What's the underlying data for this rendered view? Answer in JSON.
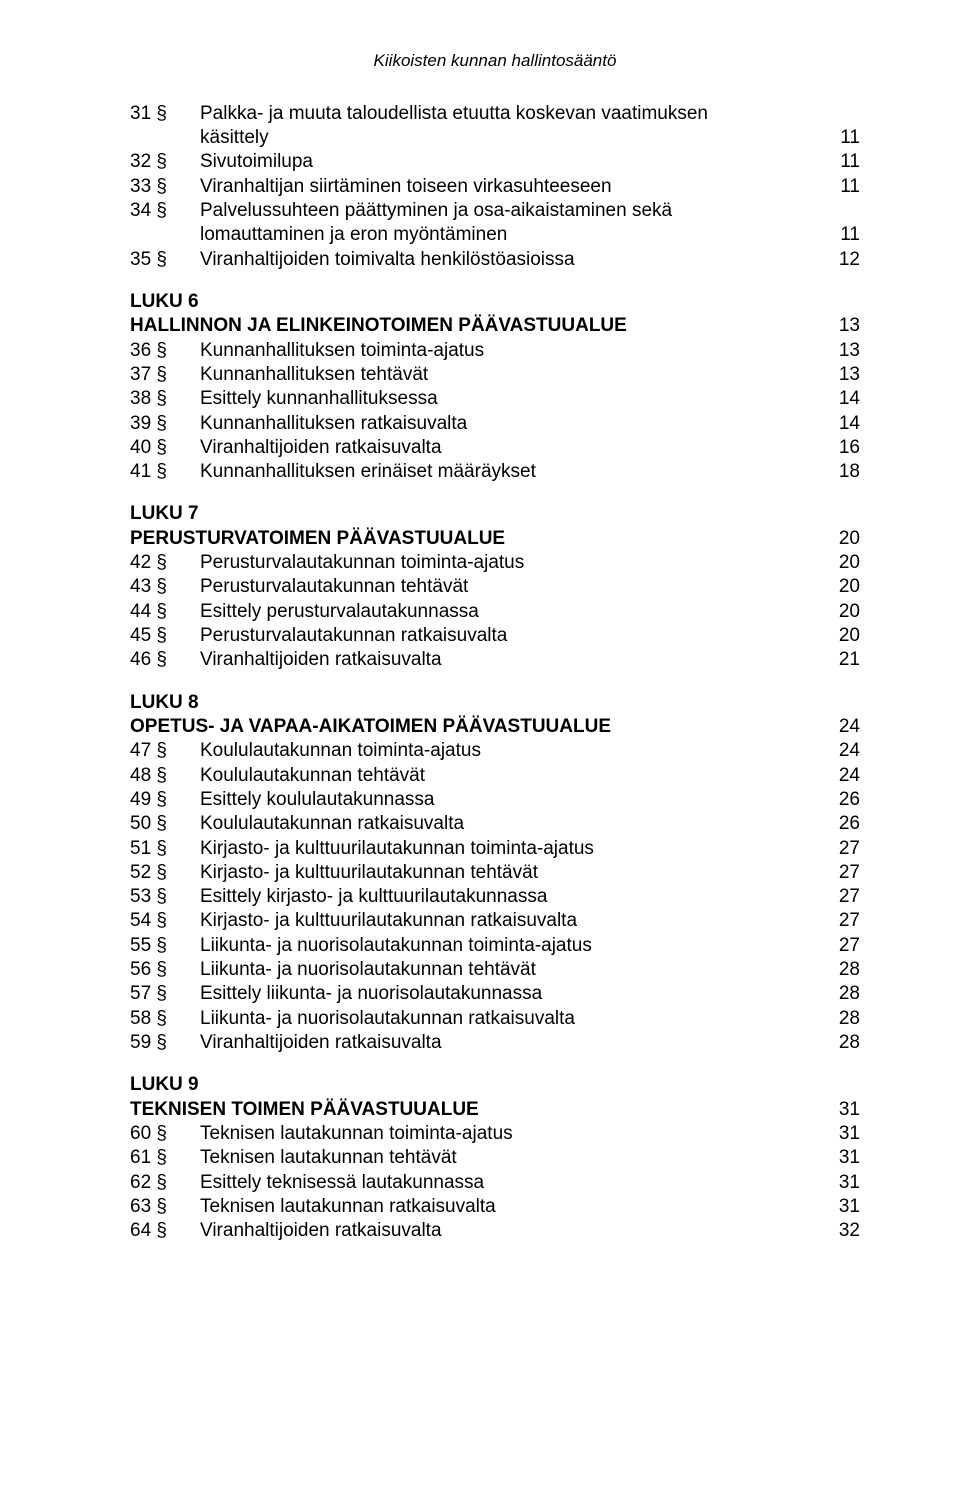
{
  "header": "Kiikoisten kunnan hallintosääntö",
  "top_entries": [
    {
      "num": "31 §",
      "text_lines": [
        "Palkka- ja muuta taloudellista etuutta koskevan vaatimuksen",
        "käsittely"
      ],
      "page": "11"
    },
    {
      "num": "32 §",
      "text_lines": [
        "Sivutoimilupa"
      ],
      "page": "11"
    },
    {
      "num": "33 §",
      "text_lines": [
        "Viranhaltijan siirtäminen toiseen virkasuhteeseen"
      ],
      "page": "11"
    },
    {
      "num": "34 §",
      "text_lines": [
        "Palvelussuhteen päättyminen ja osa-aikaistaminen sekä",
        "lomauttaminen ja eron myöntäminen"
      ],
      "page": "11"
    },
    {
      "num": "35 §",
      "text_lines": [
        "Viranhaltijoiden toimivalta henkilöstöasioissa"
      ],
      "page": "12"
    }
  ],
  "sections": [
    {
      "luku": "LUKU 6",
      "title": "HALLINNON JA ELINKEINOTOIMEN PÄÄVASTUUALUE",
      "title_page": "13",
      "entries": [
        {
          "num": "36 §",
          "text": "Kunnanhallituksen toiminta-ajatus",
          "page": "13"
        },
        {
          "num": "37 §",
          "text": "Kunnanhallituksen tehtävät",
          "page": "13"
        },
        {
          "num": "38 §",
          "text": "Esittely kunnanhallituksessa",
          "page": "14"
        },
        {
          "num": "39 §",
          "text": "Kunnanhallituksen ratkaisuvalta",
          "page": "14"
        },
        {
          "num": "40 §",
          "text": "Viranhaltijoiden ratkaisuvalta",
          "page": "16"
        },
        {
          "num": "41 §",
          "text": "Kunnanhallituksen erinäiset määräykset",
          "page": "18"
        }
      ]
    },
    {
      "luku": "LUKU 7",
      "title": "PERUSTURVATOIMEN PÄÄVASTUUALUE",
      "title_page": "20",
      "entries": [
        {
          "num": "42 §",
          "text": "Perusturvalautakunnan toiminta-ajatus",
          "page": "20"
        },
        {
          "num": "43 §",
          "text": "Perusturvalautakunnan tehtävät",
          "page": "20"
        },
        {
          "num": "44 §",
          "text": "Esittely perusturvalautakunnassa",
          "page": "20"
        },
        {
          "num": "45 §",
          "text": "Perusturvalautakunnan ratkaisuvalta",
          "page": "20"
        },
        {
          "num": "46 §",
          "text": "Viranhaltijoiden ratkaisuvalta",
          "page": "21"
        }
      ]
    },
    {
      "luku": "LUKU 8",
      "title": "OPETUS- JA VAPAA-AIKATOIMEN PÄÄVASTUUALUE",
      "title_page": "24",
      "entries": [
        {
          "num": "47 §",
          "text": "Koululautakunnan toiminta-ajatus",
          "page": "24"
        },
        {
          "num": "48 §",
          "text": "Koululautakunnan tehtävät",
          "page": "24"
        },
        {
          "num": "49 §",
          "text": "Esittely koululautakunnassa",
          "page": "26"
        },
        {
          "num": "50 §",
          "text": "Koululautakunnan ratkaisuvalta",
          "page": "26"
        },
        {
          "num": "51 §",
          "text": "Kirjasto- ja kulttuurilautakunnan toiminta-ajatus",
          "page": "27"
        },
        {
          "num": "52 §",
          "text": "Kirjasto- ja kulttuurilautakunnan tehtävät",
          "page": "27"
        },
        {
          "num": "53 §",
          "text": "Esittely kirjasto- ja kulttuurilautakunnassa",
          "page": "27"
        },
        {
          "num": "54 §",
          "text": "Kirjasto- ja kulttuurilautakunnan ratkaisuvalta",
          "page": "27"
        },
        {
          "num": "55 §",
          "text": "Liikunta- ja nuorisolautakunnan toiminta-ajatus",
          "page": "27"
        },
        {
          "num": "56 §",
          "text": "Liikunta- ja nuorisolautakunnan tehtävät",
          "page": "28"
        },
        {
          "num": "57 §",
          "text": "Esittely liikunta- ja nuorisolautakunnassa",
          "page": "28"
        },
        {
          "num": "58 §",
          "text": "Liikunta- ja nuorisolautakunnan ratkaisuvalta",
          "page": "28"
        },
        {
          "num": "59 §",
          "text": "Viranhaltijoiden ratkaisuvalta",
          "page": "28"
        }
      ]
    },
    {
      "luku": "LUKU 9",
      "title": "TEKNISEN TOIMEN PÄÄVASTUUALUE",
      "title_page": "31",
      "entries": [
        {
          "num": "60 §",
          "text": "Teknisen lautakunnan toiminta-ajatus",
          "page": "31"
        },
        {
          "num": "61 §",
          "text": "Teknisen lautakunnan tehtävät",
          "page": "31"
        },
        {
          "num": "62 §",
          "text": "Esittely teknisessä lautakunnassa",
          "page": "31"
        },
        {
          "num": "63 §",
          "text": "Teknisen lautakunnan ratkaisuvalta",
          "page": "31"
        },
        {
          "num": "64 §",
          "text": "Viranhaltijoiden ratkaisuvalta",
          "page": "32"
        }
      ]
    }
  ]
}
